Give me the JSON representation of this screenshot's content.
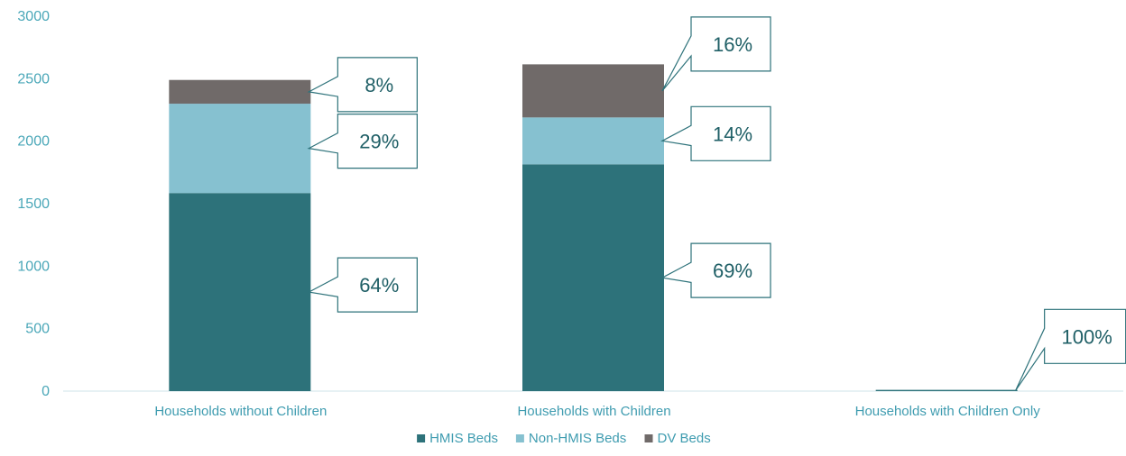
{
  "chart_data": {
    "type": "bar",
    "stacked": true,
    "categories": [
      "Households without Children",
      "Households with Children",
      "Households with Children Only"
    ],
    "series": [
      {
        "name": "HMIS Beds",
        "values": [
          1585,
          1815,
          10
        ],
        "color": "#2d727a"
      },
      {
        "name": "Non-HMIS Beds",
        "values": [
          715,
          375,
          0
        ],
        "color": "#86c1d0"
      },
      {
        "name": "DV Beds",
        "values": [
          190,
          425,
          0
        ],
        "color": "#706a69"
      }
    ],
    "ylim": [
      0,
      3000
    ],
    "yticks": [
      0,
      500,
      1000,
      1500,
      2000,
      2500,
      3000
    ],
    "title": "",
    "xlabel": "",
    "ylabel": "",
    "legend_position": "bottom",
    "grid": false,
    "callouts": [
      {
        "category": 0,
        "series": 0,
        "text": "64%"
      },
      {
        "category": 0,
        "series": 1,
        "text": "29%"
      },
      {
        "category": 0,
        "series": 2,
        "text": "8%"
      },
      {
        "category": 1,
        "series": 0,
        "text": "69%"
      },
      {
        "category": 1,
        "series": 1,
        "text": "14%"
      },
      {
        "category": 1,
        "series": 2,
        "text": "16%"
      },
      {
        "category": 2,
        "series": 0,
        "text": "100%"
      }
    ]
  }
}
